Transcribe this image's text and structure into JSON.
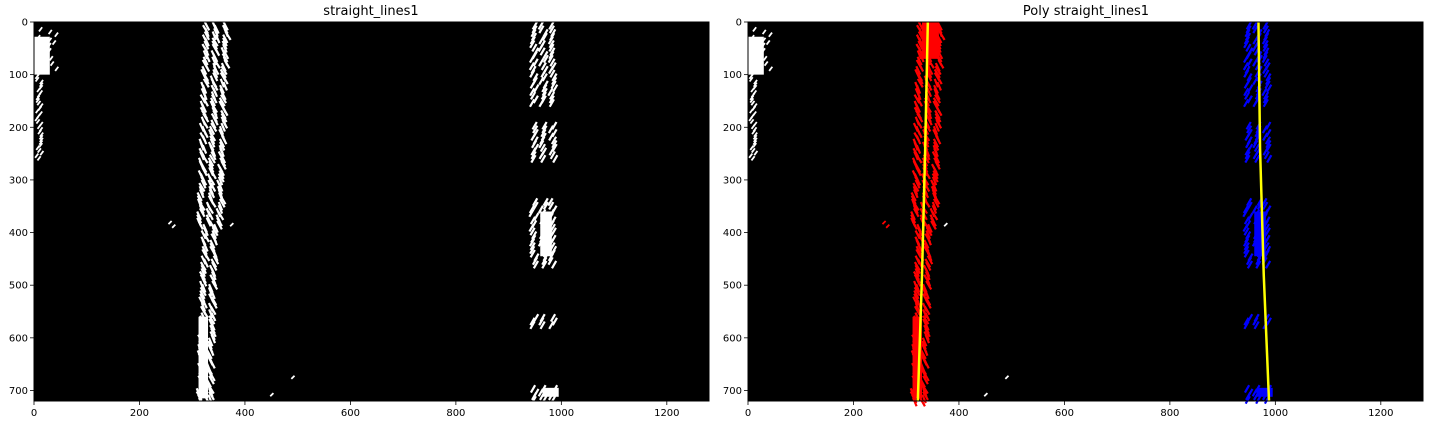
{
  "chart_data": [
    {
      "type": "image",
      "title": "straight_lines1",
      "xlim": [
        0,
        1280
      ],
      "ylim": [
        720,
        0
      ],
      "xticks": [
        0,
        200,
        400,
        600,
        800,
        1000,
        1200
      ],
      "yticks": [
        0,
        100,
        200,
        300,
        400,
        500,
        600,
        700
      ],
      "background_color": "#000000",
      "pixel_color": "#ffffff",
      "left_lane_x_range": [
        300,
        380
      ],
      "right_lane_x_range": [
        930,
        1005
      ]
    },
    {
      "type": "image",
      "title": "Poly straight_lines1",
      "xlim": [
        0,
        1280
      ],
      "ylim": [
        720,
        0
      ],
      "xticks": [
        0,
        200,
        400,
        600,
        800,
        1000,
        1200
      ],
      "yticks": [
        0,
        100,
        200,
        300,
        400,
        500,
        600,
        700
      ],
      "background_color": "#000000",
      "left_lane_pixel_color": "#ff0000",
      "right_lane_pixel_color": "#0000ff",
      "fit_line_color": "#ffff00",
      "left_fit": {
        "x": [
          341,
          336,
          330,
          322
        ],
        "y": [
          0,
          240,
          480,
          720
        ]
      },
      "right_fit": {
        "x": [
          968,
          971,
          978,
          988
        ],
        "y": [
          0,
          240,
          480,
          720
        ]
      }
    }
  ]
}
